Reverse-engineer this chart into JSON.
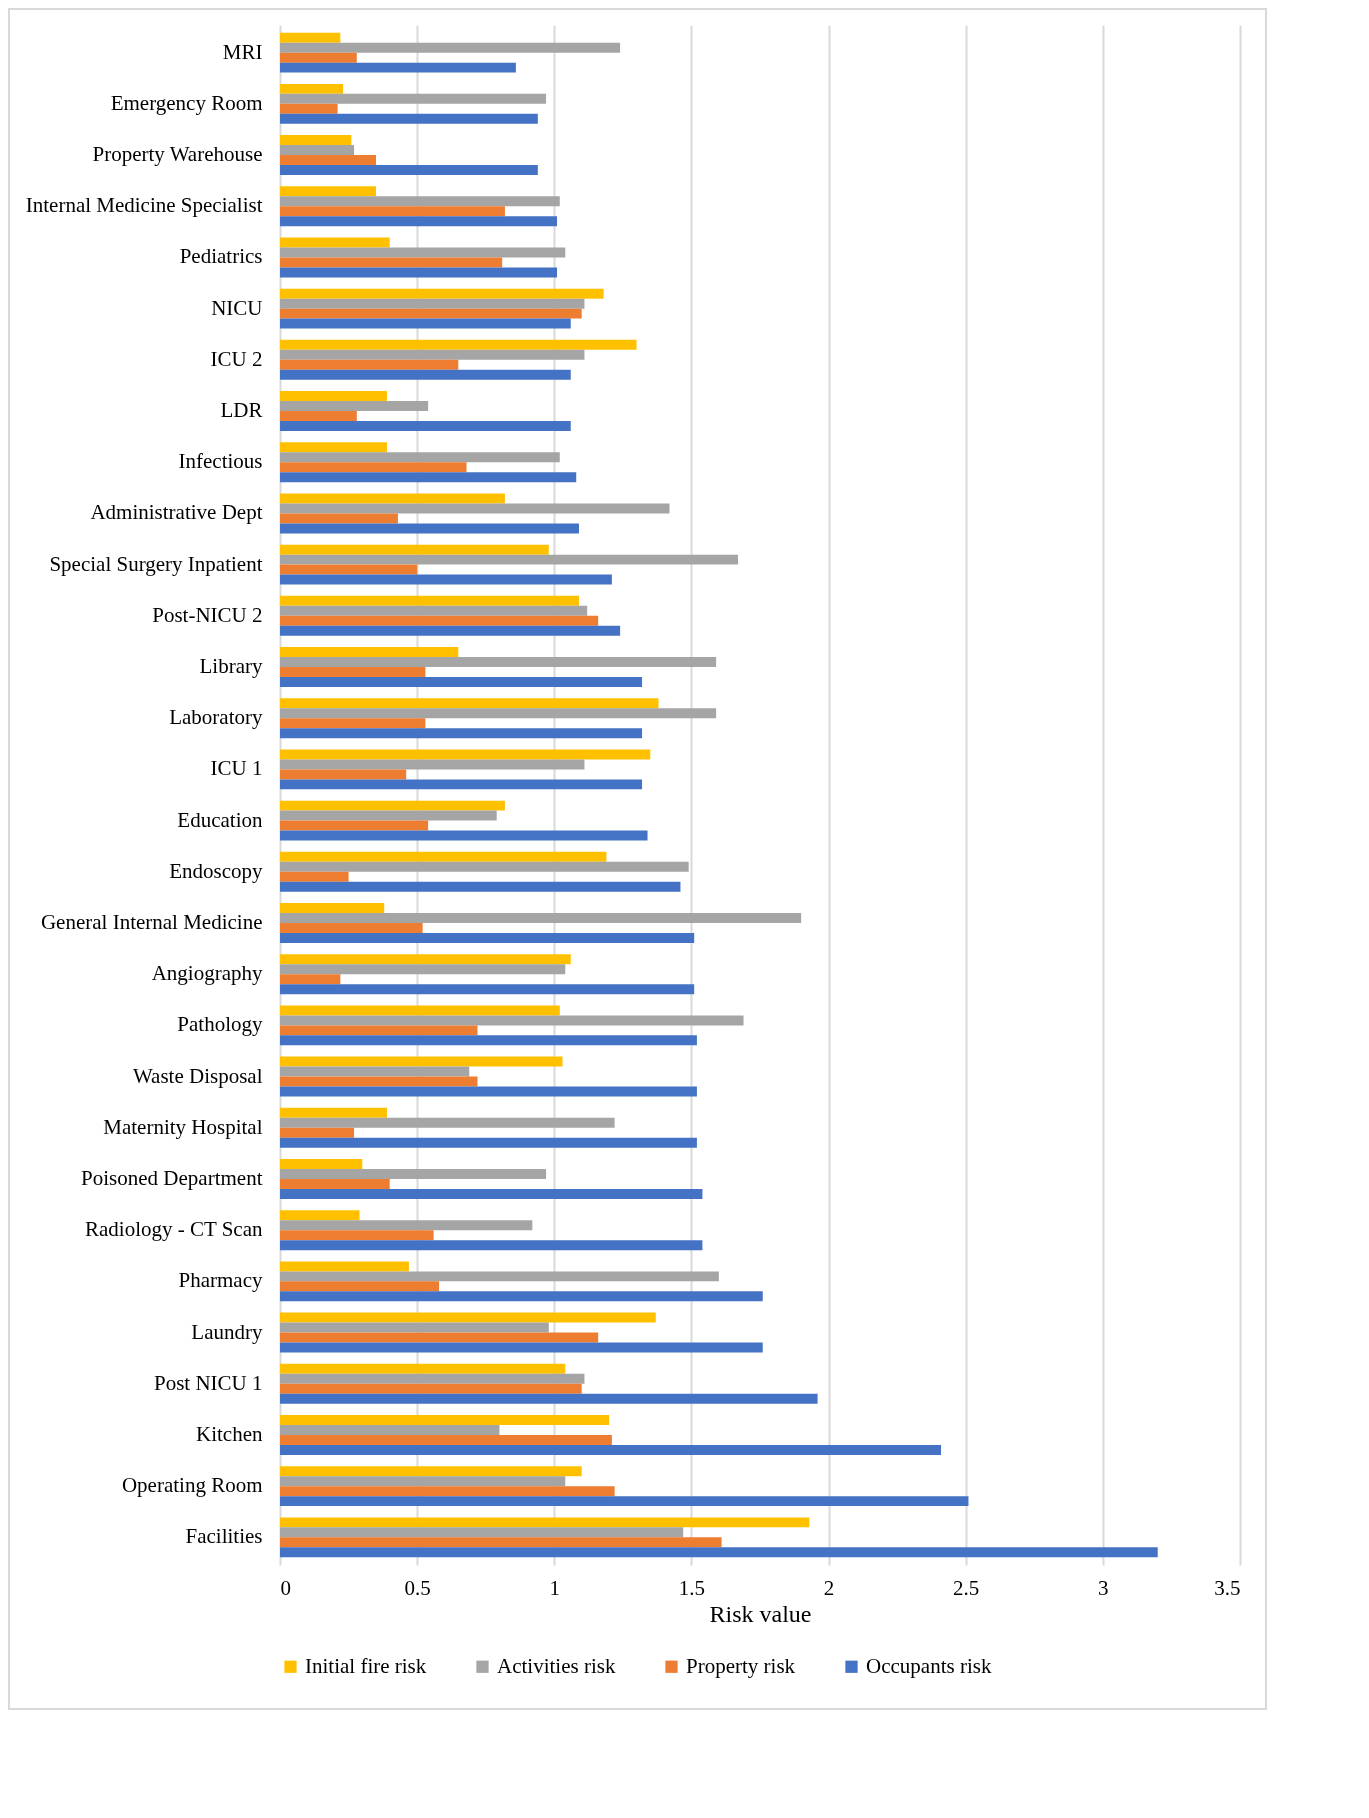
{
  "chart_data": {
    "type": "bar",
    "orientation": "horizontal",
    "xlabel": "Risk value",
    "categories": [
      "MRI",
      "Emergency Room",
      "Property Warehouse",
      "Internal Medicine Specialist",
      "Pediatrics",
      "NICU",
      "ICU 2",
      "LDR",
      "Infectious",
      "Administrative Dept",
      "Special Surgery Inpatient",
      "Post-NICU 2",
      "Library",
      "Laboratory",
      "ICU 1",
      "Education",
      "Endoscopy",
      "General Internal Medicine",
      "Angiography",
      "Pathology",
      "Waste Disposal",
      "Maternity Hospital",
      "Poisoned Department",
      "Radiology - CT Scan",
      "Pharmacy",
      "Laundry",
      "Post NICU 1",
      "Kitchen",
      "Operating Room",
      "Facilities"
    ],
    "series": [
      {
        "name": "Initial fire risk",
        "color": "#ffc000",
        "values": [
          0.22,
          0.23,
          0.26,
          0.35,
          0.4,
          1.18,
          1.3,
          0.39,
          0.39,
          0.82,
          0.98,
          1.09,
          0.65,
          1.38,
          1.35,
          0.82,
          1.19,
          0.38,
          1.06,
          1.02,
          1.03,
          0.39,
          0.3,
          0.29,
          0.47,
          1.37,
          1.04,
          1.2,
          1.1,
          1.93
        ]
      },
      {
        "name": "Activities risk",
        "color": "#a5a5a5",
        "values": [
          1.24,
          0.97,
          0.27,
          1.02,
          1.04,
          1.11,
          1.11,
          0.54,
          1.02,
          1.42,
          1.67,
          1.12,
          1.59,
          1.59,
          1.11,
          0.79,
          1.49,
          1.9,
          1.04,
          1.69,
          0.69,
          1.22,
          0.97,
          0.92,
          1.6,
          0.98,
          1.11,
          0.8,
          1.04,
          1.47
        ]
      },
      {
        "name": "Property risk",
        "color": "#ed7d31",
        "values": [
          0.28,
          0.21,
          0.35,
          0.82,
          0.81,
          1.1,
          0.65,
          0.28,
          0.68,
          0.43,
          0.5,
          1.16,
          0.53,
          0.53,
          0.46,
          0.54,
          0.25,
          0.52,
          0.22,
          0.72,
          0.72,
          0.27,
          0.4,
          0.56,
          0.58,
          1.16,
          1.1,
          1.21,
          1.22,
          1.61
        ]
      },
      {
        "name": "Occupants risk",
        "color": "#4472c4",
        "values": [
          0.86,
          0.94,
          0.94,
          1.01,
          1.01,
          1.06,
          1.06,
          1.06,
          1.08,
          1.09,
          1.21,
          1.24,
          1.32,
          1.32,
          1.32,
          1.34,
          1.46,
          1.51,
          1.51,
          1.52,
          1.52,
          1.52,
          1.54,
          1.54,
          1.76,
          1.76,
          1.96,
          2.41,
          2.51,
          3.2
        ]
      }
    ],
    "xlim": [
      0,
      3.5
    ],
    "xticks": [
      0,
      0.5,
      1,
      1.5,
      2,
      2.5,
      3,
      3.5
    ],
    "grid": "x",
    "legend": "bottom"
  }
}
